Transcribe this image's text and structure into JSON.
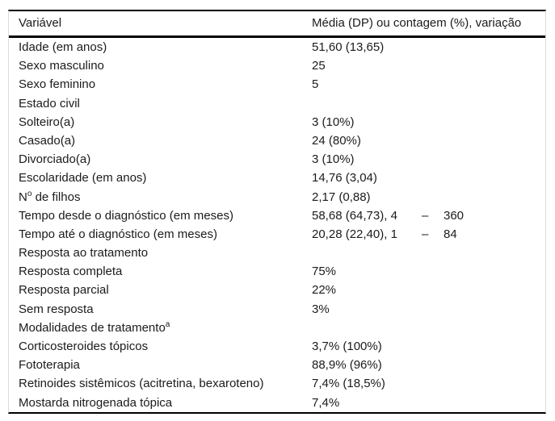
{
  "table": {
    "columns": [
      "Variável",
      "Média (DP) ou contagem (%), variação"
    ],
    "rows": [
      {
        "label": "Idade (em anos)",
        "value": "51,60 (13,65)"
      },
      {
        "label": "Sexo masculino",
        "value": "25"
      },
      {
        "label": "Sexo feminino",
        "value": "5"
      },
      {
        "label": "Estado civil",
        "value": ""
      },
      {
        "label": "Solteiro(a)",
        "value": "3 (10%)"
      },
      {
        "label": "Casado(a)",
        "value": "24 (80%)"
      },
      {
        "label": "Divorciado(a)",
        "value": "3 (10%)"
      },
      {
        "label": "Escolaridade (em anos)",
        "value": "14,76 (3,04)"
      },
      {
        "label": "N",
        "sup": "o",
        "label2": " de filhos",
        "value": "2,17 (0,88)"
      },
      {
        "label": "Tempo desde o diagnóstico (em meses)",
        "value": "58,68 (64,73), 4",
        "range_dash": "–",
        "range_max": "360"
      },
      {
        "label": "Tempo até o diagnóstico (em meses)",
        "value": "20,28 (22,40), 1",
        "range_dash": "–",
        "range_max": "84"
      },
      {
        "label": "Resposta ao tratamento",
        "value": ""
      },
      {
        "label": "Resposta completa",
        "value": "75%"
      },
      {
        "label": "Resposta parcial",
        "value": "22%"
      },
      {
        "label": "Sem resposta",
        "value": "3%"
      },
      {
        "label": "Modalidades de tratamento",
        "sup": "a",
        "value": ""
      },
      {
        "label": "Corticosteroides tópicos",
        "value": "3,7% (100%)"
      },
      {
        "label": "Fototerapia",
        "value": "88,9% (96%)"
      },
      {
        "label": "Retinoides sistêmicos (acitretina, bexaroteno)",
        "value": "7,4% (18,5%)"
      },
      {
        "label": "Mostarda nitrogenada tópica",
        "value": "7,4%"
      }
    ]
  }
}
